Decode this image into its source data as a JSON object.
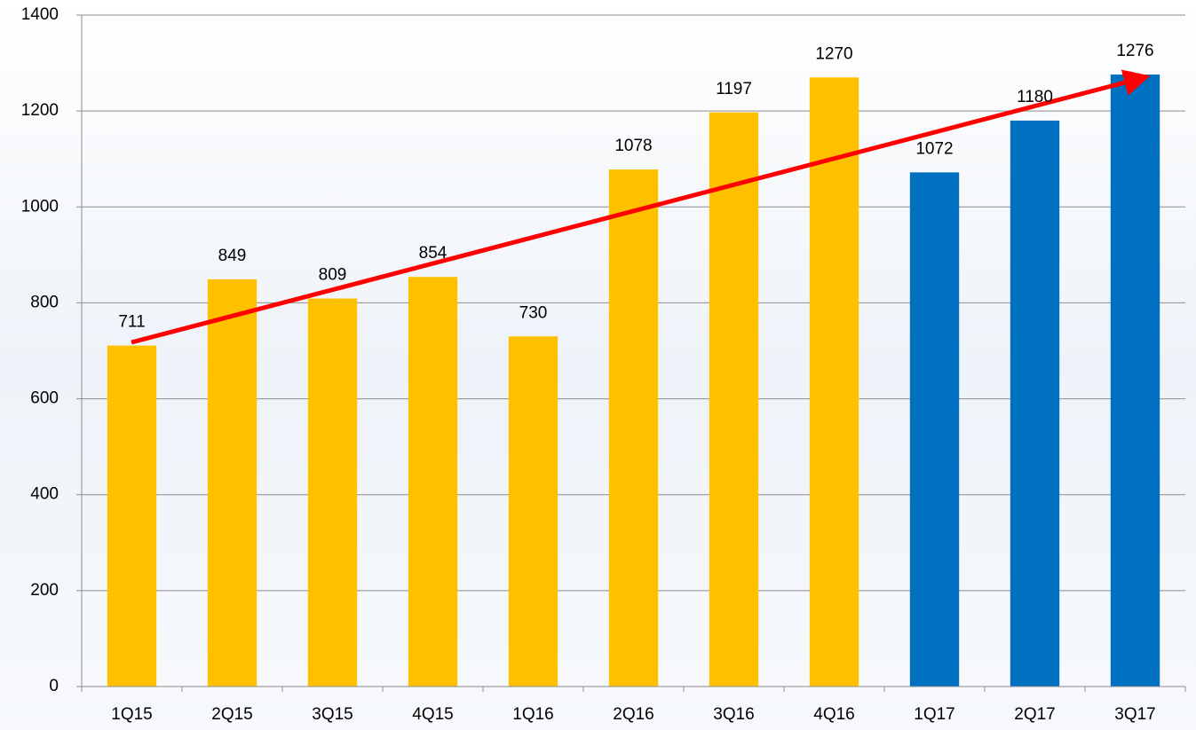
{
  "chart_data": {
    "type": "bar",
    "categories": [
      "1Q15",
      "2Q15",
      "3Q15",
      "4Q15",
      "1Q16",
      "2Q16",
      "3Q16",
      "4Q16",
      "1Q17",
      "2Q17",
      "3Q17"
    ],
    "values": [
      711,
      849,
      809,
      854,
      730,
      1078,
      1197,
      1270,
      1072,
      1180,
      1276
    ],
    "colors": [
      "#ffc000",
      "#ffc000",
      "#ffc000",
      "#ffc000",
      "#ffc000",
      "#ffc000",
      "#ffc000",
      "#ffc000",
      "#0070c0",
      "#0070c0",
      "#0070c0"
    ],
    "ylim": [
      0,
      1400
    ],
    "yticks": [
      0,
      200,
      400,
      600,
      800,
      1000,
      1200,
      1400
    ],
    "grid": true
  }
}
